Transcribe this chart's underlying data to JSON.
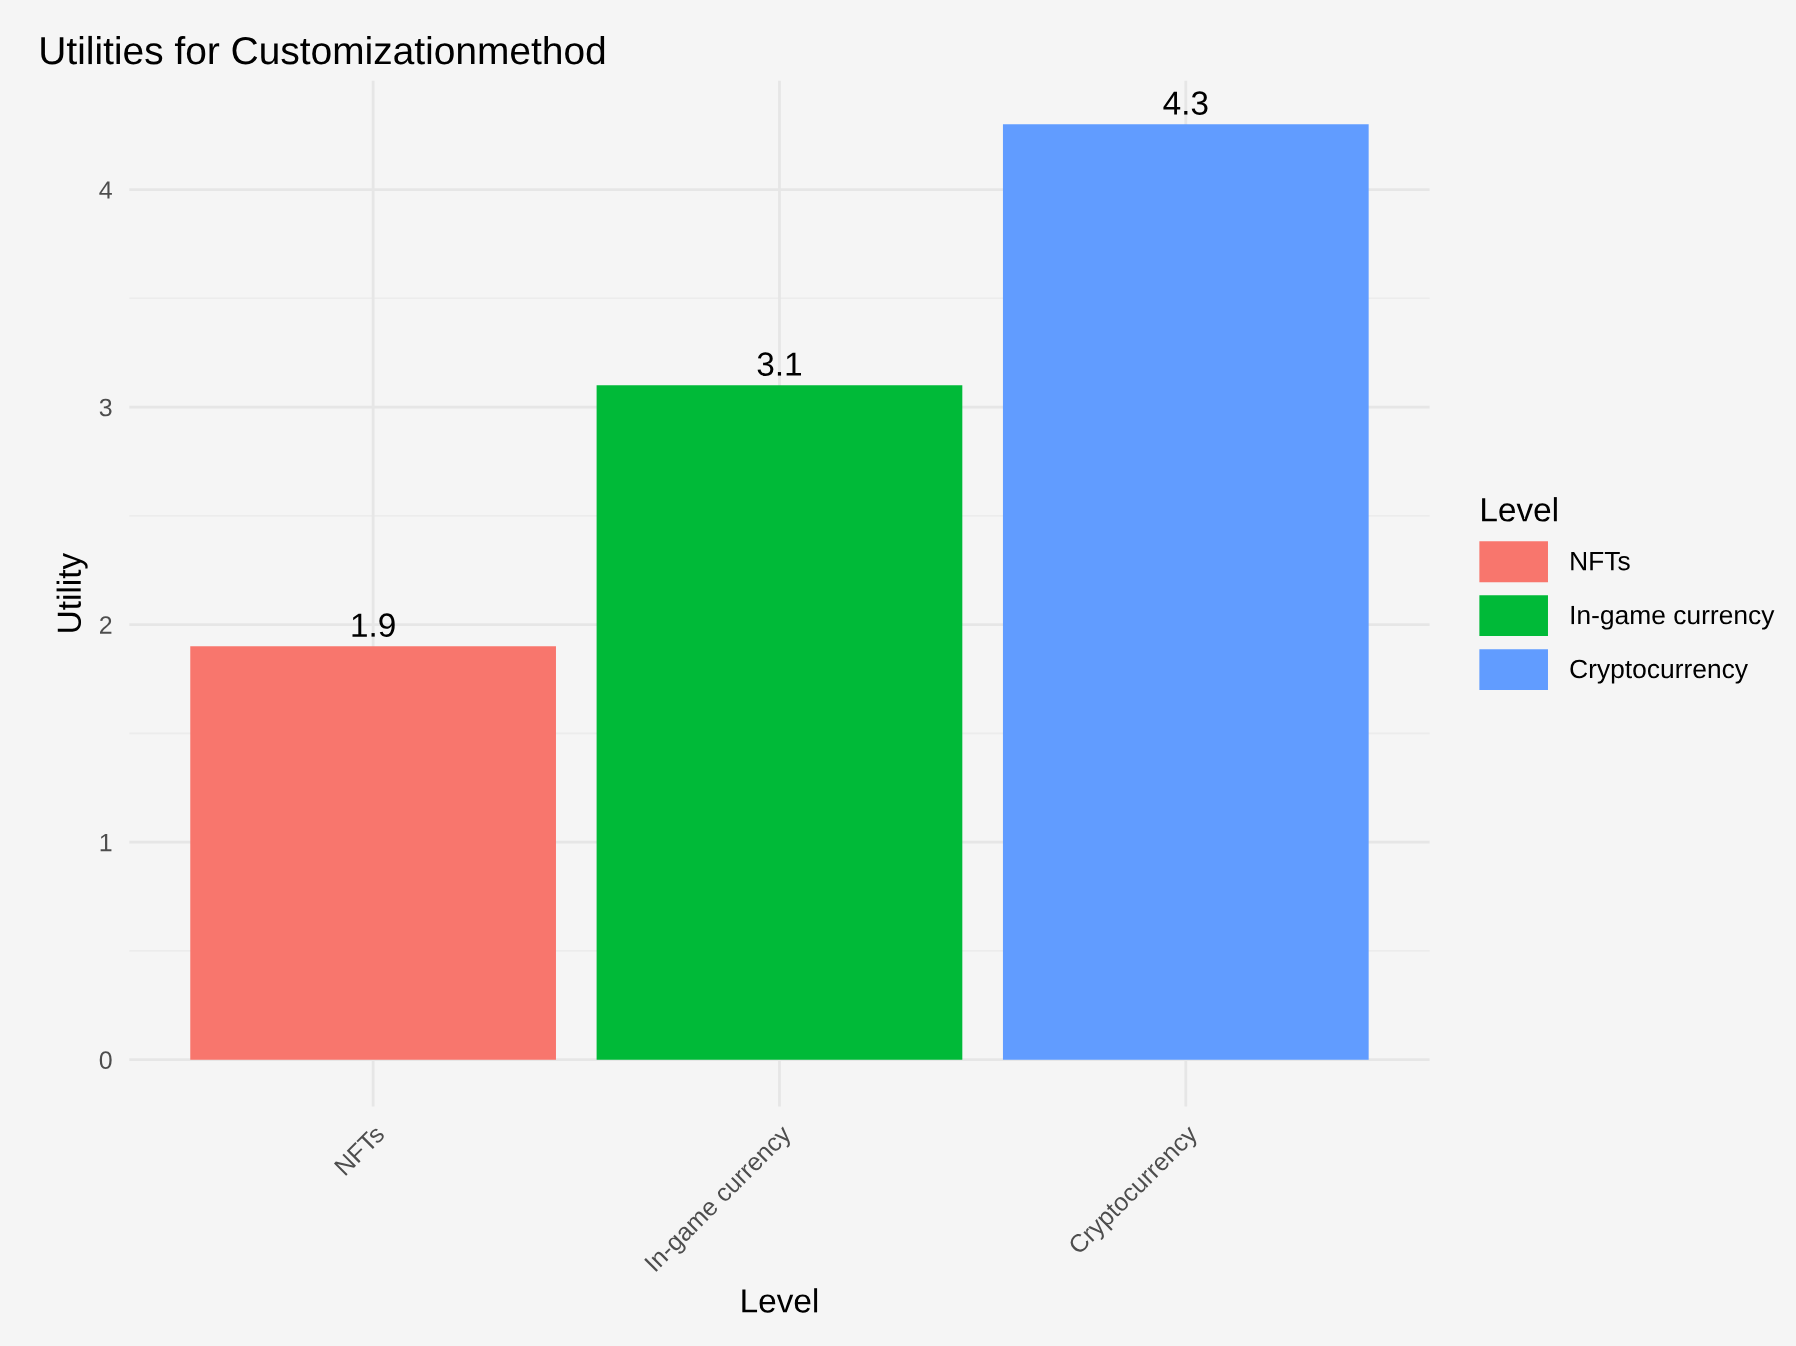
{
  "chart_data": {
    "type": "bar",
    "title": "Utilities for Customizationmethod",
    "xlabel": "Level",
    "ylabel": "Utility",
    "legend_title": "Level",
    "categories": [
      "NFTs",
      "In-game currency",
      "Cryptocurrency"
    ],
    "series": [
      {
        "name": "NFTs",
        "color": "#f8766d",
        "values": [
          1.9,
          null,
          null
        ]
      },
      {
        "name": "In-game currency",
        "color": "#00ba38",
        "values": [
          null,
          3.1,
          null
        ]
      },
      {
        "name": "Cryptocurrency",
        "color": "#619cff",
        "values": [
          null,
          null,
          4.3
        ]
      }
    ],
    "ylim": [
      -0.215,
      4.5
    ],
    "yticks": [
      0,
      1,
      2,
      3,
      4
    ],
    "grid": true,
    "legend": "right",
    "data_labels": true
  }
}
